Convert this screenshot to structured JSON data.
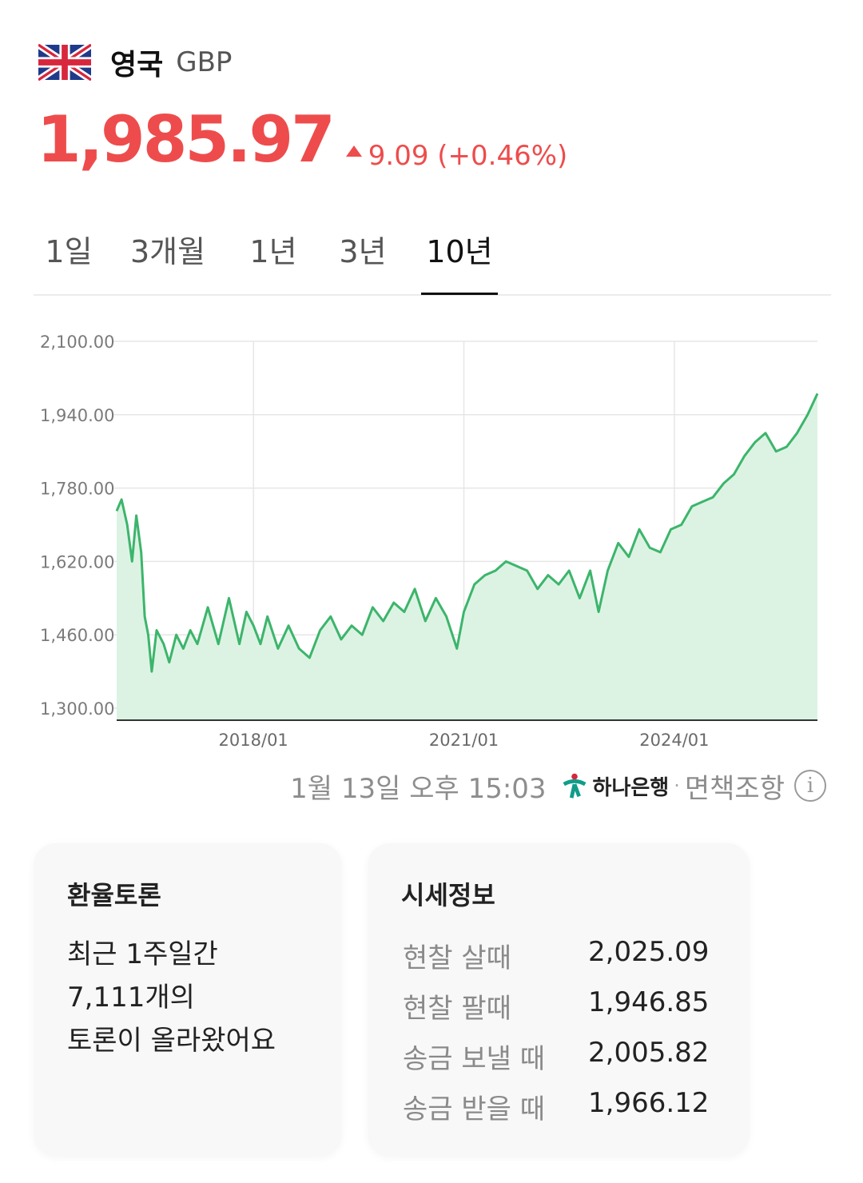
{
  "header": {
    "country": "영국",
    "code": "GBP",
    "flag_icon": "uk-flag-icon"
  },
  "quote": {
    "price": "1,985.97",
    "change": "9.09 (+0.46%)",
    "direction_icon": "triangle-up-icon",
    "color": "#ee4c4c"
  },
  "tabs": [
    {
      "label": "1일",
      "active": false
    },
    {
      "label": "3개월",
      "active": false
    },
    {
      "label": "1년",
      "active": false
    },
    {
      "label": "3년",
      "active": false
    },
    {
      "label": "10년",
      "active": true
    }
  ],
  "chart_data": {
    "type": "area",
    "ylim": [
      1300,
      2100
    ],
    "y_ticks": [
      2100,
      1940,
      1780,
      1620,
      1460,
      1300
    ],
    "y_tick_labels": [
      "2,100.00",
      "1,940.00",
      "1,780.00",
      "1,620.00",
      "1,460.00",
      "1,300.00"
    ],
    "x_tick_labels": [
      "2018/01",
      "2021/01",
      "2024/01"
    ],
    "x_ticks": [
      2018.0,
      2021.0,
      2024.0
    ],
    "xlim": [
      2016.05,
      2026.04
    ],
    "line_color": "#3cb56b",
    "fill_color": "#dcf3e4",
    "series": [
      {
        "x": [
          2016.05,
          2016.12,
          2016.2,
          2016.27,
          2016.33,
          2016.4,
          2016.45,
          2016.5,
          2016.55,
          2016.62,
          2016.72,
          2016.8,
          2016.9,
          2017.0,
          2017.1,
          2017.2,
          2017.35,
          2017.5,
          2017.65,
          2017.8,
          2017.9,
          2018.0,
          2018.1,
          2018.2,
          2018.35,
          2018.5,
          2018.65,
          2018.8,
          2018.95,
          2019.1,
          2019.25,
          2019.4,
          2019.55,
          2019.7,
          2019.85,
          2020.0,
          2020.15,
          2020.3,
          2020.45,
          2020.6,
          2020.75,
          2020.9,
          2021.0,
          2021.15,
          2021.3,
          2021.45,
          2021.6,
          2021.75,
          2021.9,
          2022.05,
          2022.2,
          2022.35,
          2022.5,
          2022.65,
          2022.8,
          2022.92,
          2023.05,
          2023.2,
          2023.35,
          2023.5,
          2023.65,
          2023.8,
          2023.95,
          2024.1,
          2024.25,
          2024.4,
          2024.55,
          2024.7,
          2024.85,
          2025.0,
          2025.15,
          2025.3,
          2025.45,
          2025.6,
          2025.75,
          2025.9,
          2026.04
        ],
        "y": [
          1730,
          1755,
          1700,
          1620,
          1720,
          1640,
          1500,
          1460,
          1380,
          1470,
          1440,
          1400,
          1460,
          1430,
          1470,
          1440,
          1520,
          1440,
          1540,
          1440,
          1510,
          1480,
          1440,
          1500,
          1430,
          1480,
          1430,
          1410,
          1470,
          1500,
          1450,
          1480,
          1460,
          1520,
          1490,
          1530,
          1510,
          1560,
          1490,
          1540,
          1500,
          1430,
          1510,
          1570,
          1590,
          1600,
          1620,
          1610,
          1600,
          1560,
          1590,
          1570,
          1600,
          1540,
          1600,
          1510,
          1600,
          1660,
          1630,
          1690,
          1650,
          1640,
          1690,
          1700,
          1740,
          1750,
          1760,
          1790,
          1810,
          1850,
          1880,
          1900,
          1860,
          1870,
          1900,
          1940,
          1985.97
        ]
      }
    ]
  },
  "meta": {
    "timestamp": "1월 13일 오후 15:03",
    "bank": "하나은행",
    "separator": "·",
    "disclaimer": "면책조항",
    "info_icon": "info-icon"
  },
  "discussion": {
    "title": "환율토론",
    "lines": [
      "최근 1주일간",
      "7,111개의",
      "토론이 올라왔어요"
    ]
  },
  "rates": {
    "title": "시세정보",
    "rows": [
      {
        "label": "현찰 살때",
        "value": "2,025.09"
      },
      {
        "label": "현찰 팔때",
        "value": "1,946.85"
      },
      {
        "label": "송금 보낼 때",
        "value": "2,005.82"
      },
      {
        "label": "송금 받을 때",
        "value": "1,966.12"
      }
    ]
  }
}
